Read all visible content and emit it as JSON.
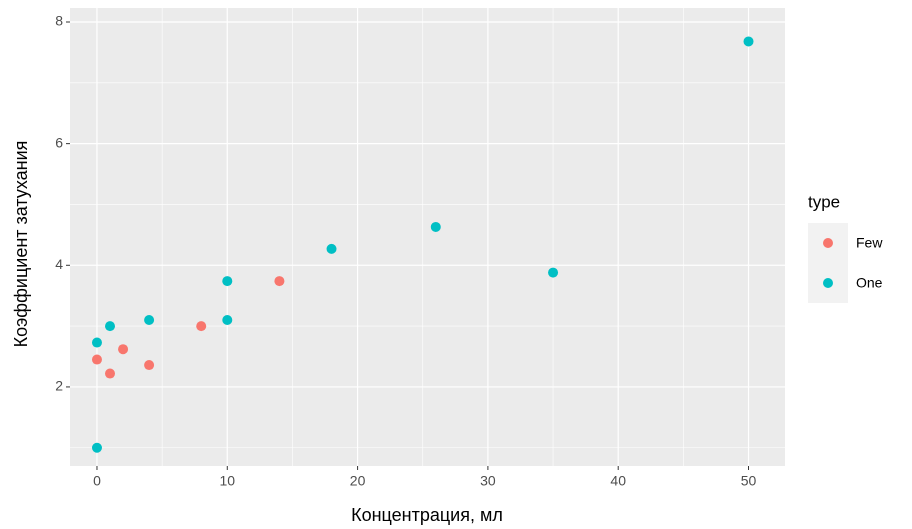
{
  "chart_data": {
    "type": "scatter",
    "x_label": "Концентрация, мл",
    "y_label": "Коэффициент затухания",
    "legend_title": "type",
    "legend_position": "right",
    "series": [
      {
        "name": "Few",
        "color": "#F8766D",
        "x": [
          0,
          1,
          2,
          4,
          8,
          14
        ],
        "values": [
          2.45,
          2.22,
          2.62,
          2.36,
          3.0,
          3.74
        ]
      },
      {
        "name": "One",
        "color": "#00BFC4",
        "x": [
          0,
          0,
          1,
          4,
          10,
          10,
          18,
          26,
          35,
          50
        ],
        "values": [
          2.73,
          1.0,
          3.0,
          3.1,
          3.74,
          3.1,
          4.27,
          4.63,
          3.88,
          7.68
        ]
      }
    ],
    "xlim": [
      -2.07,
      52.8
    ],
    "xticks": [
      0,
      10,
      20,
      30,
      40,
      50
    ],
    "ylim": [
      0.7,
      8.23
    ],
    "yticks": [
      2,
      4,
      6,
      8
    ],
    "grid": true
  }
}
